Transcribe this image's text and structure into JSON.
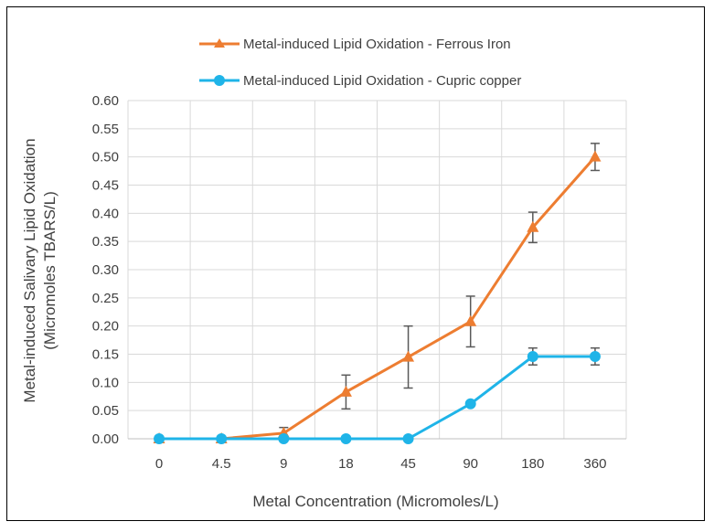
{
  "chart_data": {
    "type": "line",
    "title": "",
    "xlabel": "Metal Concentration (Micromoles/L)",
    "ylabel_line1": "Metal-induced Salivary Lipid Oxidation",
    "ylabel_line2": "(Micromoles TBARS/L)",
    "categories": [
      "0",
      "4.5",
      "9",
      "18",
      "45",
      "90",
      "180",
      "360"
    ],
    "ylim": [
      0,
      0.6
    ],
    "ytick_step": 0.05,
    "yticks": [
      "0.00",
      "0.05",
      "0.10",
      "0.15",
      "0.20",
      "0.25",
      "0.30",
      "0.35",
      "0.40",
      "0.45",
      "0.50",
      "0.55",
      "0.60"
    ],
    "grid": true,
    "legend_position": "top",
    "series": [
      {
        "name": "Metal-induced Lipid Oxidation - Ferrous Iron",
        "color": "#ED7D31",
        "marker": "triangle",
        "values": [
          0.0,
          0.0,
          0.01,
          0.083,
          0.145,
          0.208,
          0.375,
          0.5
        ],
        "errors": [
          0.0,
          0.0,
          0.01,
          0.03,
          0.055,
          0.045,
          0.027,
          0.024
        ]
      },
      {
        "name": "Metal-induced Lipid Oxidation - Cupric copper",
        "color": "#1FB4E8",
        "marker": "circle",
        "values": [
          0.0,
          0.0,
          0.0,
          0.0,
          0.0,
          0.062,
          0.146,
          0.146
        ],
        "errors": [
          0.0,
          0.0,
          0.0,
          0.0,
          0.0,
          0.0,
          0.015,
          0.015
        ]
      }
    ]
  }
}
